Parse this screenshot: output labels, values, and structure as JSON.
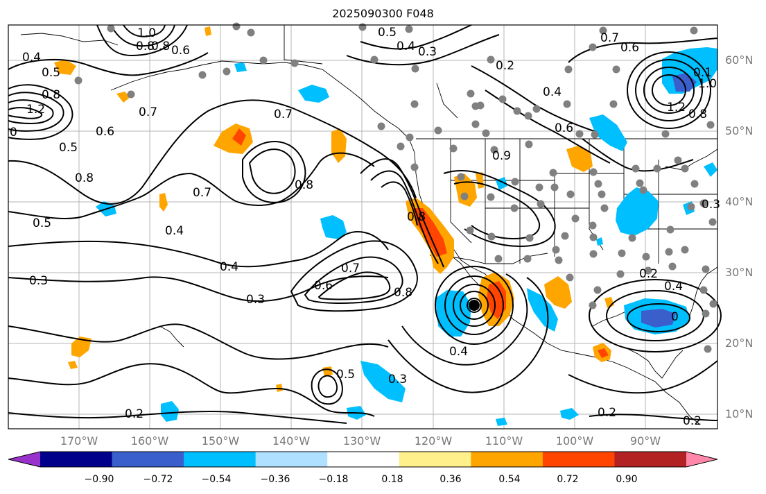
{
  "title": "2025090300 F048",
  "lat_labels": [
    "60°N",
    "50°N",
    "40°N",
    "30°N",
    "20°N",
    "10°N"
  ],
  "lon_labels": [
    "170°W",
    "160°W",
    "150°W",
    "140°W",
    "130°W",
    "120°W",
    "110°W",
    "100°W",
    "90°W"
  ],
  "colorbar": {
    "ticks": [
      "−0.90",
      "−0.72",
      "−0.54",
      "−0.36",
      "−0.18",
      "0.18",
      "0.36",
      "0.54",
      "0.72",
      "0.90"
    ],
    "colors": [
      "#9932cc",
      "#00008b",
      "#3a5fcd",
      "#00bfff",
      "#b0e0ff",
      "#ffffff",
      "#fff08c",
      "#ffa500",
      "#ff4500",
      "#b22222",
      "#ff88aa"
    ]
  },
  "contour_labels": [
    "1.0",
    "0.8",
    "0.6",
    "0.5",
    "0.4",
    "0.3",
    "0.7",
    "0.6",
    "0.8",
    "0.2",
    "0.4",
    "0.7",
    "0.1",
    "1.2",
    "1.0",
    "0.8",
    "0.4",
    "0.5",
    "0.8",
    "1.2",
    "0",
    "0.5",
    "0.6",
    "0.7",
    "0.8",
    "0.8",
    "0.7",
    "0.5",
    "0.4",
    "0.4",
    "0.3",
    "0.3",
    "0.6",
    "0.7",
    "0.8",
    "0.8",
    "0.4",
    "0.3",
    "0.2",
    "0.5",
    "0.2",
    "0",
    "0.2",
    "0.4",
    "0.9",
    "0.6",
    "0.3",
    "0.2"
  ],
  "legend_colors": {
    "positive": "#ffa500",
    "negative": "#00bfff",
    "station": "#808080"
  }
}
